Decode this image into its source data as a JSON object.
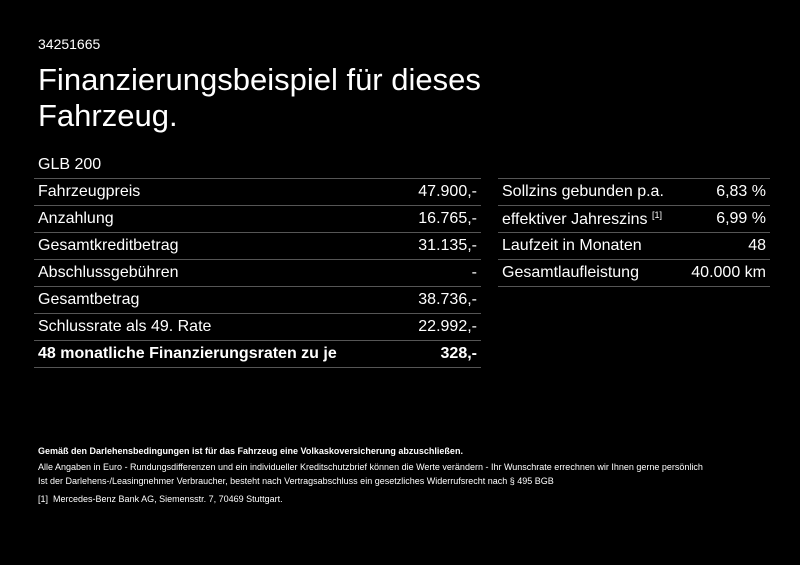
{
  "id": "34251665",
  "title": "Finanzierungsbeispiel für dieses Fahrzeug.",
  "model": "GLB 200",
  "left_rows": [
    {
      "label": "Fahrzeugpreis",
      "value": "47.900,-"
    },
    {
      "label": "Anzahlung",
      "value": "16.765,-"
    },
    {
      "label": "Gesamtkreditbetrag",
      "value": "31.135,-"
    },
    {
      "label": "Abschlussgebühren",
      "value": "-"
    },
    {
      "label": "Gesamtbetrag",
      "value": "38.736,-"
    },
    {
      "label": "Schlussrate als 49. Rate",
      "value": "22.992,-"
    },
    {
      "label": "48 monatliche Finanzierungsraten zu je",
      "value": "328,-"
    }
  ],
  "right_rows": [
    {
      "label": "Sollzins gebunden p.a.",
      "value": "6,83 %"
    },
    {
      "label": "effektiver Jahreszins",
      "sup": "[1]",
      "value": "6,99 %"
    },
    {
      "label": "Laufzeit in Monaten",
      "value": "48"
    },
    {
      "label": "Gesamtlaufleistung",
      "value": "40.000 km"
    }
  ],
  "footer": {
    "note_bold": "Gemäß den Darlehensbedingungen ist für das Fahrzeug eine Volkaskoversicherung abzuschließen.",
    "line1": "Alle Angaben in Euro - Rundungsdifferenzen und ein individueller Kreditschutzbrief können die Werte verändern - Ihr Wunschrate errechnen wir Ihnen gerne persönlich",
    "line2": "Ist der Darlehens-/Leasingnehmer Verbraucher, besteht nach Vertragsabschluss ein gesetzliches Widerrufsrecht nach § 495 BGB",
    "footnote_mark": "[1]",
    "footnote": "Mercedes-Benz Bank AG, Siemensstr. 7, 70469 Stuttgart."
  }
}
